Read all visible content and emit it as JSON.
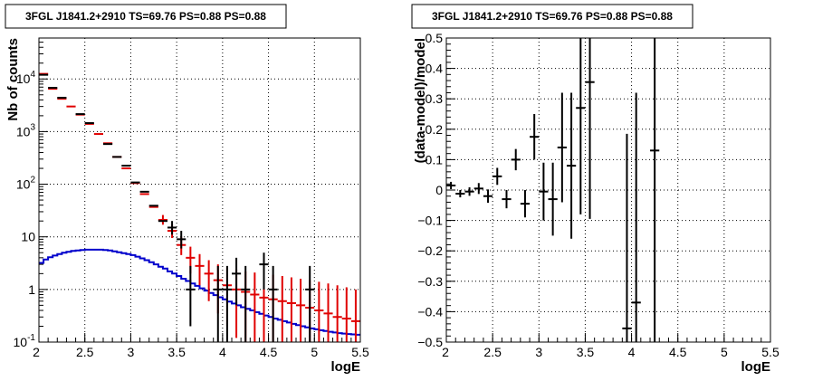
{
  "chart_data": [
    {
      "type": "scatter",
      "title": "3FGL J1841.2+2910 TS=69.76 PS=0.88 PS=0.88",
      "xlabel": "logE",
      "ylabel": "Nb of counts",
      "xlim": [
        2,
        5.5
      ],
      "ylim": [
        0.1,
        60000
      ],
      "log_y": true,
      "grid": true,
      "x_ticks": [
        "2",
        "2.5",
        "3",
        "3.5",
        "4",
        "4.5",
        "5",
        "5.5"
      ],
      "y_ticks": [
        {
          "value": 0.1,
          "base": "10",
          "exp": "-1"
        },
        {
          "value": 1,
          "base": "1",
          "exp": ""
        },
        {
          "value": 10,
          "base": "10",
          "exp": ""
        },
        {
          "value": 100,
          "base": "10",
          "exp": "2"
        },
        {
          "value": 1000,
          "base": "10",
          "exp": "3"
        },
        {
          "value": 10000,
          "base": "10",
          "exp": "4"
        }
      ],
      "colors": {
        "data": "#000000",
        "model": "#e00000",
        "background": "#0000cc"
      },
      "series": [
        {
          "kind": "data_points",
          "color": "#000000",
          "points": [
            {
              "x": 2.05,
              "y": 12000
            },
            {
              "x": 2.15,
              "y": 6800
            },
            {
              "x": 2.25,
              "y": 4400
            },
            {
              "x": 2.45,
              "y": 2150
            },
            {
              "x": 2.55,
              "y": 1450
            },
            {
              "x": 2.75,
              "y": 580
            },
            {
              "x": 2.85,
              "y": 330
            },
            {
              "x": 2.95,
              "y": 225
            },
            {
              "x": 3.05,
              "y": 108
            },
            {
              "x": 3.15,
              "y": 72
            },
            {
              "x": 3.25,
              "y": 39
            },
            {
              "x": 3.35,
              "y": 20
            },
            {
              "x": 3.45,
              "y": 15,
              "lo": 11,
              "hi": 20
            },
            {
              "x": 3.55,
              "y": 9,
              "lo": 6,
              "hi": 13
            },
            {
              "x": 3.65,
              "y": 1,
              "lo": 0.2,
              "hi": 2.8
            },
            {
              "x": 3.95,
              "y": 1,
              "lo": 0.1,
              "hi": 2.8
            },
            {
              "x": 4.05,
              "y": 1,
              "lo": 0.1,
              "hi": 2.8
            },
            {
              "x": 4.15,
              "y": 2,
              "lo": 0.5,
              "hi": 4
            },
            {
              "x": 4.25,
              "y": 1,
              "lo": 0.1,
              "hi": 2.8
            },
            {
              "x": 4.45,
              "y": 3,
              "lo": 1,
              "hi": 5
            },
            {
              "x": 4.55,
              "y": 1,
              "lo": 0.1,
              "hi": 2.8
            },
            {
              "x": 4.95,
              "y": 1,
              "lo": 0.1,
              "hi": 2.8
            }
          ]
        },
        {
          "kind": "model_points",
          "color": "#e00000",
          "points": [
            {
              "x": 2.05,
              "y": 12500
            },
            {
              "x": 2.15,
              "y": 6500
            },
            {
              "x": 2.25,
              "y": 4200
            },
            {
              "x": 2.35,
              "y": 3000
            },
            {
              "x": 2.45,
              "y": 2100
            },
            {
              "x": 2.55,
              "y": 1400
            },
            {
              "x": 2.65,
              "y": 900
            },
            {
              "x": 2.75,
              "y": 600
            },
            {
              "x": 2.85,
              "y": 330
            },
            {
              "x": 2.95,
              "y": 200
            },
            {
              "x": 3.05,
              "y": 105
            },
            {
              "x": 3.15,
              "y": 65
            },
            {
              "x": 3.25,
              "y": 37
            },
            {
              "x": 3.35,
              "y": 21,
              "lo": 17,
              "hi": 26
            },
            {
              "x": 3.45,
              "y": 13,
              "lo": 9.5,
              "hi": 17
            },
            {
              "x": 3.55,
              "y": 7,
              "lo": 4.5,
              "hi": 10
            },
            {
              "x": 3.65,
              "y": 4,
              "lo": 2,
              "hi": 6.5
            },
            {
              "x": 3.75,
              "y": 2.8,
              "lo": 1.2,
              "hi": 4.7
            },
            {
              "x": 3.85,
              "y": 2,
              "lo": 0.6,
              "hi": 3.6
            },
            {
              "x": 3.95,
              "y": 1.5,
              "lo": 0.35,
              "hi": 3
            },
            {
              "x": 4.05,
              "y": 1.2,
              "lo": 0.2,
              "hi": 2.6
            },
            {
              "x": 4.15,
              "y": 1,
              "lo": 0.12,
              "hi": 2.4
            },
            {
              "x": 4.25,
              "y": 0.9,
              "lo": 0.1,
              "hi": 2.2
            },
            {
              "x": 4.35,
              "y": 0.8,
              "lo": 0.1,
              "hi": 2.1
            },
            {
              "x": 4.45,
              "y": 0.7,
              "lo": 0.1,
              "hi": 2
            },
            {
              "x": 4.55,
              "y": 0.65,
              "lo": 0.1,
              "hi": 1.9
            },
            {
              "x": 4.65,
              "y": 0.6,
              "lo": 0.1,
              "hi": 1.8
            },
            {
              "x": 4.75,
              "y": 0.55,
              "lo": 0.1,
              "hi": 1.7
            },
            {
              "x": 4.85,
              "y": 0.5,
              "lo": 0.1,
              "hi": 1.6
            },
            {
              "x": 4.95,
              "y": 0.45,
              "lo": 0.1,
              "hi": 1.5
            },
            {
              "x": 5.05,
              "y": 0.4,
              "lo": 0.1,
              "hi": 1.4
            },
            {
              "x": 5.15,
              "y": 0.35,
              "lo": 0.1,
              "hi": 1.3
            },
            {
              "x": 5.25,
              "y": 0.3,
              "lo": 0.1,
              "hi": 1.2
            },
            {
              "x": 5.35,
              "y": 0.28,
              "lo": 0.1,
              "hi": 1.1
            },
            {
              "x": 5.45,
              "y": 0.25,
              "lo": 0.1,
              "hi": 1
            }
          ]
        },
        {
          "kind": "step_histogram",
          "color": "#0000cc",
          "bin_width": 0.05,
          "bins": [
            {
              "x": 2.0,
              "y": 3.2
            },
            {
              "x": 2.05,
              "y": 3.7
            },
            {
              "x": 2.1,
              "y": 4.1
            },
            {
              "x": 2.15,
              "y": 4.4
            },
            {
              "x": 2.2,
              "y": 4.7
            },
            {
              "x": 2.25,
              "y": 5.0
            },
            {
              "x": 2.3,
              "y": 5.2
            },
            {
              "x": 2.35,
              "y": 5.4
            },
            {
              "x": 2.4,
              "y": 5.5
            },
            {
              "x": 2.45,
              "y": 5.6
            },
            {
              "x": 2.5,
              "y": 5.7
            },
            {
              "x": 2.55,
              "y": 5.7
            },
            {
              "x": 2.6,
              "y": 5.7
            },
            {
              "x": 2.65,
              "y": 5.7
            },
            {
              "x": 2.7,
              "y": 5.6
            },
            {
              "x": 2.75,
              "y": 5.5
            },
            {
              "x": 2.8,
              "y": 5.3
            },
            {
              "x": 2.85,
              "y": 5.1
            },
            {
              "x": 2.9,
              "y": 4.9
            },
            {
              "x": 2.95,
              "y": 4.7
            },
            {
              "x": 3.0,
              "y": 4.5
            },
            {
              "x": 3.05,
              "y": 4.2
            },
            {
              "x": 3.1,
              "y": 3.9
            },
            {
              "x": 3.15,
              "y": 3.6
            },
            {
              "x": 3.2,
              "y": 3.3
            },
            {
              "x": 3.25,
              "y": 3.0
            },
            {
              "x": 3.3,
              "y": 2.7
            },
            {
              "x": 3.35,
              "y": 2.5
            },
            {
              "x": 3.4,
              "y": 2.2
            },
            {
              "x": 3.45,
              "y": 2.0
            },
            {
              "x": 3.5,
              "y": 1.8
            },
            {
              "x": 3.55,
              "y": 1.6
            },
            {
              "x": 3.6,
              "y": 1.45
            },
            {
              "x": 3.65,
              "y": 1.3
            },
            {
              "x": 3.7,
              "y": 1.17
            },
            {
              "x": 3.75,
              "y": 1.05
            },
            {
              "x": 3.8,
              "y": 0.95
            },
            {
              "x": 3.85,
              "y": 0.86
            },
            {
              "x": 3.9,
              "y": 0.78
            },
            {
              "x": 3.95,
              "y": 0.71
            },
            {
              "x": 4.0,
              "y": 0.65
            },
            {
              "x": 4.05,
              "y": 0.59
            },
            {
              "x": 4.1,
              "y": 0.54
            },
            {
              "x": 4.15,
              "y": 0.5
            },
            {
              "x": 4.2,
              "y": 0.46
            },
            {
              "x": 4.25,
              "y": 0.43
            },
            {
              "x": 4.3,
              "y": 0.4
            },
            {
              "x": 4.35,
              "y": 0.37
            },
            {
              "x": 4.4,
              "y": 0.345
            },
            {
              "x": 4.45,
              "y": 0.32
            },
            {
              "x": 4.5,
              "y": 0.3
            },
            {
              "x": 4.55,
              "y": 0.28
            },
            {
              "x": 4.6,
              "y": 0.265
            },
            {
              "x": 4.65,
              "y": 0.25
            },
            {
              "x": 4.7,
              "y": 0.235
            },
            {
              "x": 4.75,
              "y": 0.222
            },
            {
              "x": 4.8,
              "y": 0.21
            },
            {
              "x": 4.85,
              "y": 0.2
            },
            {
              "x": 4.9,
              "y": 0.19
            },
            {
              "x": 4.95,
              "y": 0.182
            },
            {
              "x": 5.0,
              "y": 0.175
            },
            {
              "x": 5.05,
              "y": 0.168
            },
            {
              "x": 5.1,
              "y": 0.162
            },
            {
              "x": 5.15,
              "y": 0.157
            },
            {
              "x": 5.2,
              "y": 0.152
            },
            {
              "x": 5.25,
              "y": 0.148
            },
            {
              "x": 5.3,
              "y": 0.145
            },
            {
              "x": 5.35,
              "y": 0.142
            },
            {
              "x": 5.4,
              "y": 0.14
            },
            {
              "x": 5.45,
              "y": 0.138
            }
          ]
        }
      ]
    },
    {
      "type": "scatter",
      "title": "3FGL J1841.2+2910 TS=69.76 PS=0.88 PS=0.88",
      "xlabel": "logE",
      "ylabel": "(data-model)/model",
      "xlim": [
        2,
        5.5
      ],
      "ylim": [
        -0.5,
        0.5
      ],
      "log_y": false,
      "grid": true,
      "x_ticks": [
        "2",
        "2.5",
        "3",
        "3.5",
        "4",
        "4.5",
        "5",
        "5.5"
      ],
      "y_ticks": [
        {
          "value": -0.5,
          "label": "−0.5"
        },
        {
          "value": -0.4,
          "label": "−0.4"
        },
        {
          "value": -0.3,
          "label": "−0.3"
        },
        {
          "value": -0.2,
          "label": "−0.2"
        },
        {
          "value": -0.1,
          "label": "−0.1"
        },
        {
          "value": 0,
          "label": "0"
        },
        {
          "value": 0.1,
          "label": "0.1"
        },
        {
          "value": 0.2,
          "label": "0.2"
        },
        {
          "value": 0.3,
          "label": "0.3"
        },
        {
          "value": 0.4,
          "label": "0.4"
        },
        {
          "value": 0.5,
          "label": "0.5"
        }
      ],
      "series": [
        {
          "kind": "residuals",
          "color": "#000000",
          "points": [
            {
              "x": 2.05,
              "y": 0.015,
              "err": 0.012
            },
            {
              "x": 2.15,
              "y": -0.012,
              "err": 0.012
            },
            {
              "x": 2.25,
              "y": -0.005,
              "err": 0.014
            },
            {
              "x": 2.35,
              "y": 0.005,
              "err": 0.018
            },
            {
              "x": 2.45,
              "y": -0.02,
              "err": 0.022
            },
            {
              "x": 2.55,
              "y": 0.045,
              "err": 0.028
            },
            {
              "x": 2.65,
              "y": -0.03,
              "err": 0.03
            },
            {
              "x": 2.75,
              "y": 0.1,
              "err": 0.035
            },
            {
              "x": 2.85,
              "y": -0.045,
              "err": 0.045
            },
            {
              "x": 2.95,
              "y": 0.175,
              "err": 0.075
            },
            {
              "x": 3.05,
              "y": -0.005,
              "err": 0.095
            },
            {
              "x": 3.15,
              "y": -0.03,
              "err": 0.12
            },
            {
              "x": 3.25,
              "y": 0.14,
              "err": 0.18
            },
            {
              "x": 3.35,
              "y": 0.08,
              "err": 0.24
            },
            {
              "x": 3.45,
              "y": 0.27,
              "err": 0.35
            },
            {
              "x": 3.55,
              "y": 0.355,
              "err": 0.45
            },
            {
              "x": 3.95,
              "y": -0.455,
              "err": 0.64
            },
            {
              "x": 4.05,
              "y": -0.37,
              "err": 0.69
            },
            {
              "x": 4.25,
              "y": 0.13,
              "err": 0.8
            }
          ]
        }
      ]
    }
  ]
}
